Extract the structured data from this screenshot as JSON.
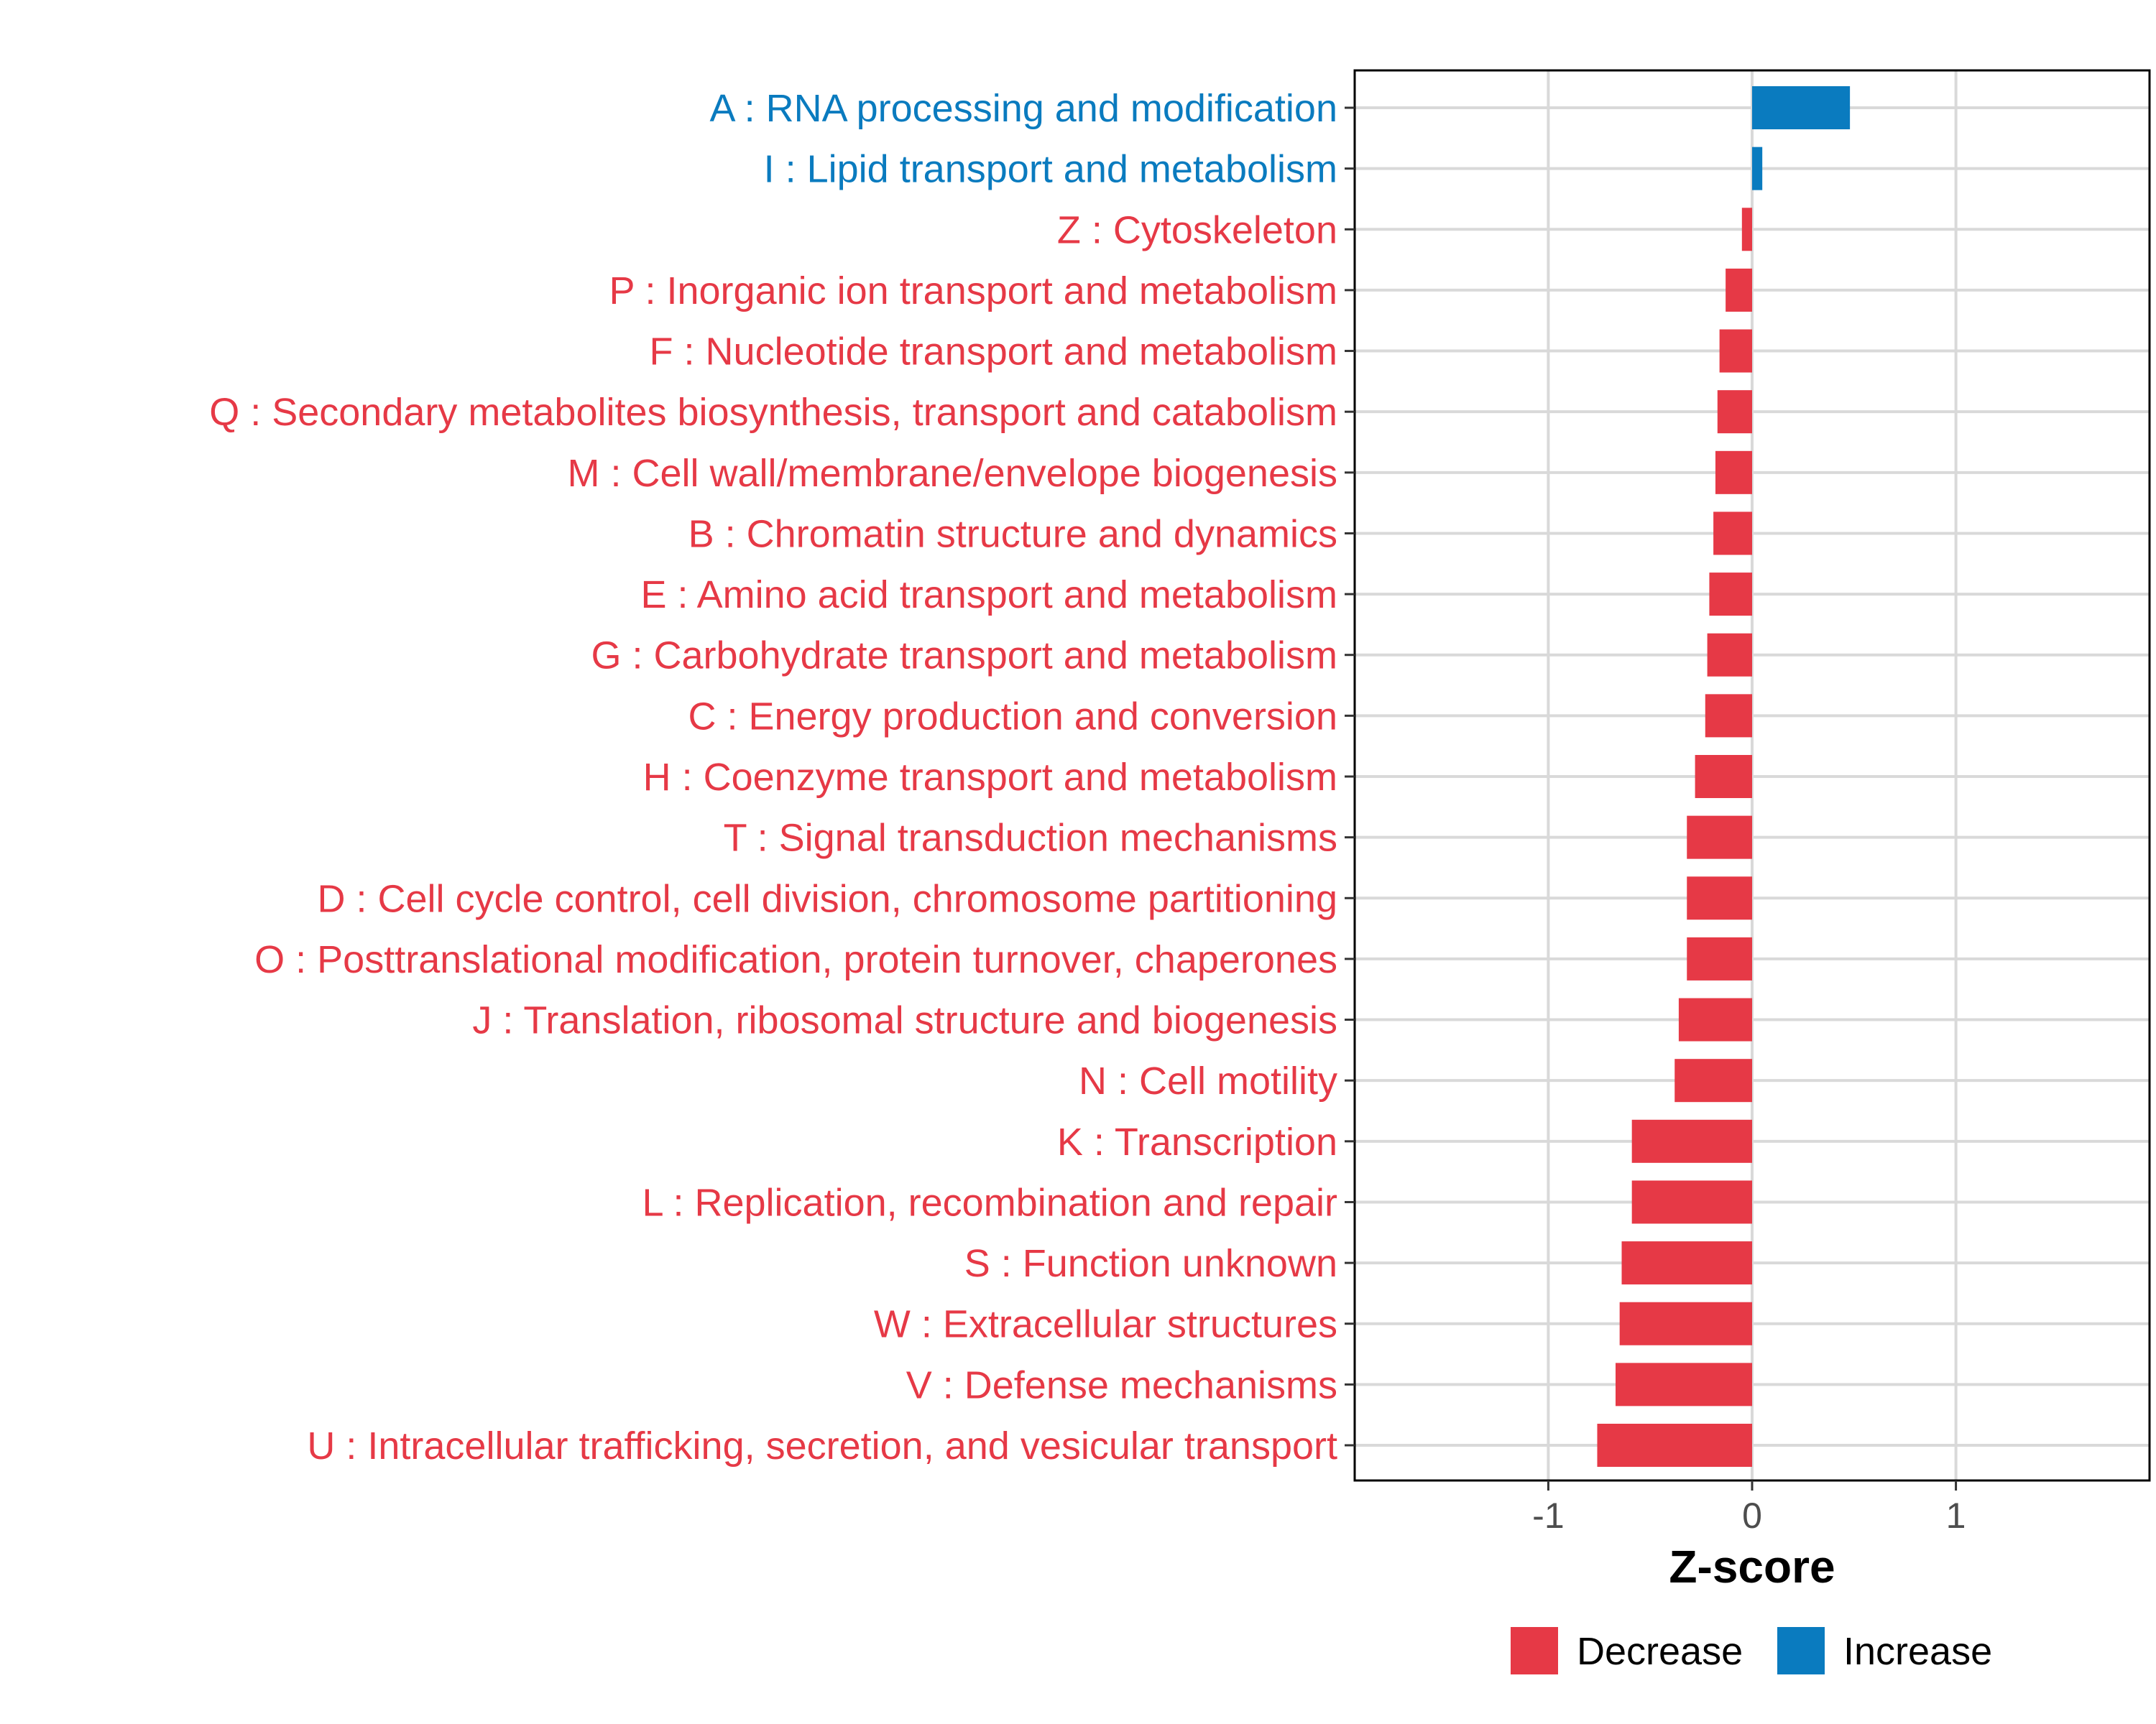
{
  "chart_data": {
    "type": "bar",
    "orientation": "horizontal",
    "title": "",
    "xlabel": "Z-score",
    "ylabel": "",
    "xlim": [
      -1.95,
      1.95
    ],
    "xticks": [
      -1,
      0,
      1
    ],
    "xtick_labels": [
      "-1",
      "0",
      "1"
    ],
    "grid": true,
    "legend_position": "bottom",
    "colors": {
      "Decrease": "#e63946",
      "Increase": "#0a7bbf"
    },
    "legend": [
      {
        "label": "Decrease",
        "color": "#e63946"
      },
      {
        "label": "Increase",
        "color": "#0a7bbf"
      }
    ],
    "categories": [
      "A : RNA processing and modification",
      "I : Lipid transport and metabolism",
      "Z : Cytoskeleton",
      "P : Inorganic ion transport and metabolism",
      "F : Nucleotide transport and metabolism",
      "Q : Secondary metabolites biosynthesis, transport and catabolism",
      "M : Cell wall/membrane/envelope biogenesis",
      "B : Chromatin structure and dynamics",
      "E : Amino acid transport and metabolism",
      "G : Carbohydrate transport and metabolism",
      "C : Energy production and conversion",
      "H : Coenzyme transport and metabolism",
      "T : Signal transduction mechanisms",
      "D : Cell cycle control, cell division, chromosome partitioning",
      "O : Posttranslational modification, protein turnover, chaperones",
      "J : Translation, ribosomal structure and biogenesis",
      "N : Cell motility",
      "K : Transcription",
      "L : Replication, recombination and repair",
      "S : Function unknown",
      "W : Extracellular structures",
      "V : Defense mechanisms",
      "U : Intracellular trafficking, secretion, and vesicular transport"
    ],
    "values": [
      0.48,
      0.05,
      -0.05,
      -0.13,
      -0.16,
      -0.17,
      -0.18,
      -0.19,
      -0.21,
      -0.22,
      -0.23,
      -0.28,
      -0.32,
      -0.32,
      -0.32,
      -0.36,
      -0.38,
      -0.59,
      -0.59,
      -0.64,
      -0.65,
      -0.67,
      -0.76
    ],
    "direction": [
      "Increase",
      "Increase",
      "Decrease",
      "Decrease",
      "Decrease",
      "Decrease",
      "Decrease",
      "Decrease",
      "Decrease",
      "Decrease",
      "Decrease",
      "Decrease",
      "Decrease",
      "Decrease",
      "Decrease",
      "Decrease",
      "Decrease",
      "Decrease",
      "Decrease",
      "Decrease",
      "Decrease",
      "Decrease",
      "Decrease"
    ]
  }
}
